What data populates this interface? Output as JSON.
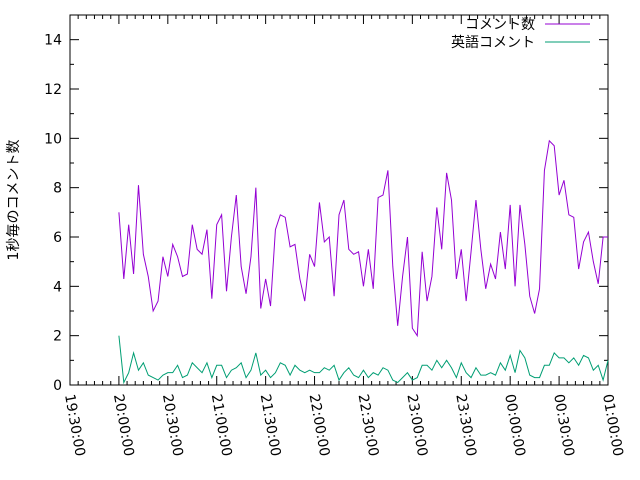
{
  "chart_data": {
    "type": "line",
    "title": "",
    "xlabel": "",
    "ylabel": "1秒毎のコメント数",
    "xlim": [
      "19:30:00",
      "01:00:00"
    ],
    "ylim": [
      0,
      15
    ],
    "grid": false,
    "legend_position": "top-right",
    "x_ticks": [
      "19:30:00",
      "20:00:00",
      "20:30:00",
      "21:00:00",
      "21:30:00",
      "22:00:00",
      "22:30:00",
      "23:00:00",
      "23:30:00",
      "00:00:00",
      "00:30:00",
      "01:00:00"
    ],
    "y_ticks": [
      0,
      2,
      4,
      6,
      8,
      10,
      12,
      14
    ],
    "x": [
      "20:00:00",
      "20:03:00",
      "20:06:00",
      "20:09:00",
      "20:12:00",
      "20:15:00",
      "20:18:00",
      "20:21:00",
      "20:24:00",
      "20:27:00",
      "20:30:00",
      "20:33:00",
      "20:36:00",
      "20:39:00",
      "20:42:00",
      "20:45:00",
      "20:48:00",
      "20:51:00",
      "20:54:00",
      "20:57:00",
      "21:00:00",
      "21:03:00",
      "21:06:00",
      "21:09:00",
      "21:12:00",
      "21:15:00",
      "21:18:00",
      "21:21:00",
      "21:24:00",
      "21:27:00",
      "21:30:00",
      "21:33:00",
      "21:36:00",
      "21:39:00",
      "21:42:00",
      "21:45:00",
      "21:48:00",
      "21:51:00",
      "21:54:00",
      "21:57:00",
      "22:00:00",
      "22:03:00",
      "22:06:00",
      "22:09:00",
      "22:12:00",
      "22:15:00",
      "22:18:00",
      "22:21:00",
      "22:24:00",
      "22:27:00",
      "22:30:00",
      "22:33:00",
      "22:36:00",
      "22:39:00",
      "22:42:00",
      "22:45:00",
      "22:48:00",
      "22:51:00",
      "22:54:00",
      "22:57:00",
      "23:00:00",
      "23:03:00",
      "23:06:00",
      "23:09:00",
      "23:12:00",
      "23:15:00",
      "23:18:00",
      "23:21:00",
      "23:24:00",
      "23:27:00",
      "23:30:00",
      "23:33:00",
      "23:36:00",
      "23:39:00",
      "23:42:00",
      "23:45:00",
      "23:48:00",
      "23:51:00",
      "23:54:00",
      "23:57:00",
      "00:00:00",
      "00:03:00",
      "00:06:00",
      "00:09:00",
      "00:12:00",
      "00:15:00",
      "00:18:00",
      "00:21:00",
      "00:24:00",
      "00:27:00",
      "00:30:00",
      "00:33:00",
      "00:36:00",
      "00:39:00",
      "00:42:00",
      "00:45:00",
      "00:48:00",
      "00:51:00",
      "00:54:00",
      "00:57:00",
      "01:00:00"
    ],
    "series": [
      {
        "name": "コメント数",
        "color": "#9400d3",
        "values": [
          7.0,
          4.3,
          6.5,
          4.5,
          8.1,
          5.3,
          4.4,
          3.0,
          3.4,
          5.2,
          4.4,
          5.7,
          5.2,
          4.4,
          4.5,
          6.5,
          5.5,
          5.3,
          6.3,
          3.5,
          6.5,
          6.9,
          3.8,
          6.0,
          7.7,
          4.8,
          3.7,
          5.2,
          8.0,
          3.1,
          4.3,
          3.2,
          6.3,
          6.9,
          6.8,
          5.6,
          5.7,
          4.3,
          3.4,
          5.3,
          4.8,
          7.4,
          5.8,
          6.0,
          3.6,
          6.9,
          7.5,
          5.5,
          5.3,
          5.4,
          4.0,
          5.5,
          3.9,
          7.6,
          7.7,
          8.7,
          4.8,
          2.4,
          4.4,
          6.0,
          2.3,
          2.0,
          5.4,
          3.4,
          4.4,
          7.2,
          5.5,
          8.6,
          7.5,
          4.3,
          5.5,
          3.4,
          5.4,
          7.5,
          5.5,
          3.9,
          4.9,
          4.3,
          6.2,
          4.7,
          7.3,
          4.0,
          7.3,
          5.7,
          3.6,
          2.9,
          3.9,
          8.7,
          9.9,
          9.7,
          7.7,
          8.3,
          6.9,
          6.8,
          4.7,
          5.8,
          6.2,
          5.0,
          4.1,
          6.0,
          6.0
        ]
      },
      {
        "name": "英語コメント",
        "color": "#009e73",
        "values": [
          2.0,
          0.1,
          0.5,
          1.3,
          0.6,
          0.9,
          0.4,
          0.3,
          0.2,
          0.4,
          0.5,
          0.5,
          0.8,
          0.3,
          0.4,
          0.9,
          0.7,
          0.5,
          0.9,
          0.3,
          0.8,
          0.8,
          0.3,
          0.6,
          0.7,
          0.9,
          0.3,
          0.6,
          1.3,
          0.4,
          0.6,
          0.3,
          0.5,
          0.9,
          0.8,
          0.4,
          0.8,
          0.6,
          0.5,
          0.6,
          0.5,
          0.5,
          0.7,
          0.6,
          0.8,
          0.2,
          0.5,
          0.7,
          0.4,
          0.3,
          0.6,
          0.3,
          0.5,
          0.4,
          0.7,
          0.6,
          0.2,
          0.1,
          0.3,
          0.5,
          0.2,
          0.3,
          0.8,
          0.8,
          0.6,
          1.0,
          0.7,
          1.0,
          0.7,
          0.3,
          0.9,
          0.5,
          0.3,
          0.7,
          0.4,
          0.4,
          0.5,
          0.4,
          0.9,
          0.6,
          1.2,
          0.5,
          1.4,
          1.1,
          0.4,
          0.3,
          0.3,
          0.8,
          0.8,
          1.3,
          1.1,
          1.1,
          0.9,
          1.1,
          0.8,
          1.2,
          1.1,
          0.6,
          0.8,
          0.2,
          1.0
        ]
      }
    ]
  }
}
